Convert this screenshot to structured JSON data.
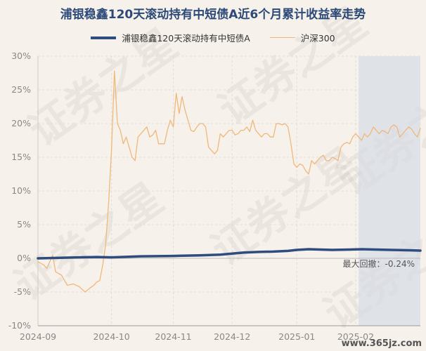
{
  "chart_data": {
    "type": "line",
    "title": "浦银稳鑫120天滚动持有中短债A近6个月累计收益率走势",
    "ylim": [
      -10,
      30
    ],
    "ytick_labels": [
      "30%",
      "25%",
      "20%",
      "15%",
      "10%",
      "5%",
      "0%",
      "-5%",
      "-10%"
    ],
    "ytick_values": [
      30,
      25,
      20,
      15,
      10,
      5,
      0,
      -5,
      -10
    ],
    "xtick_labels": [
      "2024-09",
      "2024-10",
      "2024-11",
      "2024-12",
      "2025-01",
      "2025-02"
    ],
    "xlim": [
      0,
      130
    ],
    "xtick_positions": [
      0,
      25,
      46,
      66,
      88,
      108
    ],
    "grid": true,
    "legend_position": "top-center",
    "series": [
      {
        "name": "浦银稳鑫120天滚动持有中短债A",
        "color": "#2e4c7e",
        "x": [
          0,
          10,
          20,
          25,
          35,
          46,
          55,
          62,
          66,
          70,
          75,
          80,
          85,
          88,
          92,
          96,
          100,
          106,
          110,
          115,
          120,
          126,
          130
        ],
        "y": [
          0,
          0.1,
          0.2,
          0.15,
          0.3,
          0.35,
          0.45,
          0.55,
          0.7,
          0.85,
          0.95,
          1.0,
          1.1,
          1.25,
          1.35,
          1.3,
          1.25,
          1.3,
          1.35,
          1.3,
          1.25,
          1.2,
          1.15
        ]
      },
      {
        "name": "沪深300",
        "color": "#f0b87a",
        "x": [
          0,
          2,
          3,
          5,
          6,
          8,
          10,
          12,
          14,
          16,
          18,
          19,
          20,
          21,
          22,
          23,
          24,
          25,
          26,
          27,
          28,
          29,
          30,
          31,
          32,
          33,
          34,
          35,
          36,
          37,
          38,
          39,
          40,
          41,
          42,
          43,
          44,
          45,
          46,
          47,
          48,
          49,
          50,
          51,
          52,
          53,
          54,
          55,
          56,
          57,
          58,
          59,
          60,
          61,
          62,
          63,
          64,
          65,
          66,
          67,
          68,
          69,
          70,
          71,
          72,
          73,
          74,
          75,
          76,
          77,
          78,
          79,
          80,
          81,
          82,
          83,
          84,
          85,
          86,
          87,
          88,
          89,
          90,
          91,
          92,
          93,
          94,
          95,
          96,
          97,
          98,
          99,
          100,
          101,
          102,
          103,
          104,
          105,
          106,
          107,
          108,
          109,
          110,
          111,
          112,
          113,
          114,
          115,
          116,
          117,
          118,
          119,
          120,
          121,
          122,
          123,
          124,
          125,
          126,
          127,
          128,
          129,
          130
        ],
        "y": [
          -0.5,
          -1.0,
          -1.5,
          0.5,
          -2.0,
          -2.5,
          -4.0,
          -3.8,
          -4.2,
          -5.0,
          -4.3,
          -4.0,
          -3.5,
          -3.3,
          -1.0,
          2.0,
          8.0,
          16.0,
          27.8,
          20.0,
          19.0,
          17.0,
          18.0,
          16.5,
          15.0,
          14.5,
          18.0,
          18.5,
          19.0,
          19.5,
          18.0,
          18.3,
          19.0,
          17.0,
          17.0,
          17.0,
          19.0,
          20.5,
          19.5,
          24.5,
          21.5,
          24.0,
          22.0,
          20.5,
          19.0,
          18.8,
          19.5,
          20.0,
          20.0,
          19.5,
          16.5,
          16.0,
          15.5,
          16.0,
          18.5,
          18.0,
          18.5,
          19.0,
          19.0,
          18.3,
          18.5,
          19.0,
          19.0,
          19.5,
          18.8,
          20.5,
          19.0,
          18.5,
          18.0,
          18.5,
          18.5,
          18.0,
          18.0,
          20.0,
          20.0,
          19.8,
          20.0,
          19.5,
          17.0,
          14.0,
          13.5,
          14.0,
          13.8,
          13.0,
          12.5,
          14.5,
          14.0,
          14.5,
          15.0,
          15.3,
          14.5,
          14.5,
          15.0,
          14.8,
          14.5,
          16.5,
          17.0,
          17.2,
          17.0,
          18.0,
          18.5,
          18.0,
          17.5,
          18.5,
          18.0,
          18.5,
          19.5,
          19.0,
          18.5,
          19.0,
          18.8,
          18.5,
          19.5,
          19.8,
          19.5,
          18.0,
          18.5,
          19.0,
          19.5,
          19.2,
          18.5,
          18.0,
          19.3
        ],
        "y_note_removed": true
      }
    ],
    "annotation": {
      "text": "最大回撤：-0.24%",
      "shaded_x_range": [
        109,
        130
      ]
    }
  },
  "watermark": "证券之星",
  "site": "www.365jz.com"
}
